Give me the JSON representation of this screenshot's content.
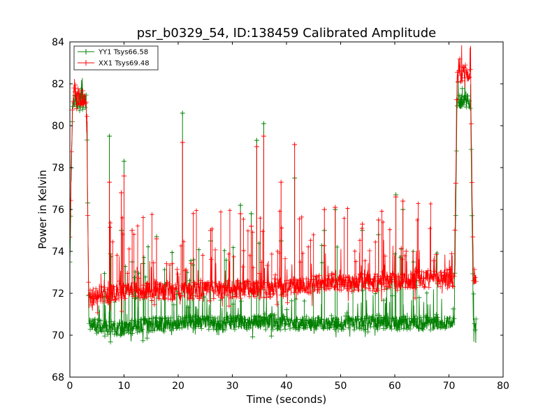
{
  "chart_data": {
    "type": "line",
    "title": "psr_b0329_54, ID:138459 Calibrated Amplitude",
    "xlabel": "Time (seconds)",
    "ylabel": "Power in Kelvin",
    "xlim": [
      0,
      80
    ],
    "ylim": [
      68,
      84
    ],
    "xticks": [
      "0",
      "10",
      "20",
      "30",
      "40",
      "50",
      "60",
      "70",
      "80"
    ],
    "yticks": [
      "68",
      "70",
      "72",
      "74",
      "76",
      "78",
      "80",
      "82",
      "84"
    ],
    "grid": false,
    "legend_position": "top-left",
    "marker": "+",
    "series": [
      {
        "name": "YY1 Tsys66.58",
        "color": "#008000",
        "x": [
          0.0,
          0.5,
          1.0,
          1.5,
          2.0,
          2.5,
          3.0,
          3.2,
          3.5,
          4.0,
          4.5,
          5.0,
          5.5,
          6.0,
          6.5,
          7.0,
          7.5,
          8.0,
          9.0,
          10.0,
          11.0,
          12.0,
          14.0,
          16.0,
          18.0,
          20.0,
          22.0,
          24.0,
          26.0,
          28.0,
          30.0,
          32.0,
          34.0,
          36.0,
          38.0,
          40.0,
          42.0,
          44.0,
          46.0,
          48.0,
          50.0,
          52.0,
          54.0,
          56.0,
          58.0,
          60.0,
          62.0,
          64.0,
          66.0,
          68.0,
          70.0,
          71.0,
          71.5,
          72.0,
          73.0,
          74.0,
          74.5,
          75.0
        ],
        "values": [
          73.5,
          81.0,
          81.2,
          81.1,
          81.2,
          81.1,
          81.2,
          79.0,
          70.6,
          70.5,
          70.5,
          70.4,
          70.5,
          70.4,
          70.3,
          70.4,
          70.3,
          70.4,
          70.3,
          70.3,
          70.4,
          70.4,
          70.5,
          70.5,
          70.5,
          70.6,
          70.6,
          70.6,
          70.6,
          70.6,
          70.6,
          70.6,
          70.6,
          70.6,
          70.6,
          70.6,
          70.6,
          70.6,
          70.6,
          70.6,
          70.6,
          70.6,
          70.6,
          70.6,
          70.6,
          70.6,
          70.6,
          70.6,
          70.6,
          70.6,
          70.6,
          70.5,
          81.1,
          81.1,
          81.2,
          81.1,
          70.5,
          70.5
        ]
      },
      {
        "name": "XX1 Tsys69.48",
        "color": "#ff0000",
        "x": [
          0.0,
          0.5,
          1.0,
          1.5,
          2.0,
          2.5,
          3.0,
          3.2,
          3.5,
          4.0,
          4.5,
          5.0,
          5.5,
          6.0,
          6.5,
          7.0,
          7.5,
          8.0,
          9.0,
          10.0,
          11.0,
          12.0,
          14.0,
          16.0,
          18.0,
          20.0,
          22.0,
          24.0,
          26.0,
          28.0,
          30.0,
          32.0,
          34.0,
          36.0,
          38.0,
          40.0,
          42.0,
          44.0,
          46.0,
          48.0,
          50.0,
          52.0,
          54.0,
          56.0,
          58.0,
          60.0,
          62.0,
          64.0,
          66.0,
          68.0,
          70.0,
          71.0,
          71.5,
          72.0,
          73.0,
          74.0,
          74.5,
          75.0
        ],
        "values": [
          74.5,
          81.3,
          81.5,
          81.4,
          81.4,
          81.3,
          81.3,
          78.0,
          71.9,
          71.8,
          71.9,
          71.8,
          71.8,
          71.9,
          72.0,
          71.9,
          72.0,
          72.0,
          72.0,
          72.0,
          72.1,
          72.1,
          72.1,
          72.1,
          72.1,
          72.1,
          72.1,
          72.2,
          72.2,
          72.2,
          72.2,
          72.2,
          72.2,
          72.2,
          72.3,
          72.3,
          72.4,
          72.4,
          72.4,
          72.5,
          72.5,
          72.5,
          72.5,
          72.5,
          72.6,
          72.6,
          72.6,
          72.7,
          72.7,
          72.7,
          72.7,
          72.7,
          82.4,
          82.4,
          82.5,
          82.5,
          72.7,
          72.7
        ]
      }
    ],
    "spikes": [
      {
        "x": 7.3,
        "yy": 79.5,
        "xx": 77.3
      },
      {
        "x": 9.5,
        "yy": 75.0,
        "xx": 76.8
      },
      {
        "x": 10.0,
        "yy": 78.3,
        "xx": 77.6
      },
      {
        "x": 11.5,
        "yy": 73.5,
        "xx": 75.0
      },
      {
        "x": 16.0,
        "yy": 74.7,
        "xx": 74.6
      },
      {
        "x": 20.8,
        "yy": 80.6,
        "xx": 79.2
      },
      {
        "x": 26.0,
        "yy": 74.5,
        "xx": 75.0
      },
      {
        "x": 31.5,
        "yy": 76.2,
        "xx": 75.8
      },
      {
        "x": 33.5,
        "yy": 75.8,
        "xx": 75.2
      },
      {
        "x": 34.5,
        "yy": 79.3,
        "xx": 79.0
      },
      {
        "x": 35.8,
        "yy": 80.1,
        "xx": 79.5
      },
      {
        "x": 39.0,
        "yy": 74.5,
        "xx": 77.3
      },
      {
        "x": 41.5,
        "yy": 77.5,
        "xx": 79.1
      },
      {
        "x": 47.0,
        "yy": 75.0,
        "xx": 76.0
      },
      {
        "x": 49.0,
        "yy": 76.0,
        "xx": 76.1
      },
      {
        "x": 54.0,
        "yy": 75.0,
        "xx": 75.3
      },
      {
        "x": 57.0,
        "yy": 74.8,
        "xx": 75.5
      },
      {
        "x": 60.2,
        "yy": 76.7,
        "xx": 76.6
      },
      {
        "x": 61.5,
        "yy": 76.0,
        "xx": 76.4
      }
    ]
  }
}
